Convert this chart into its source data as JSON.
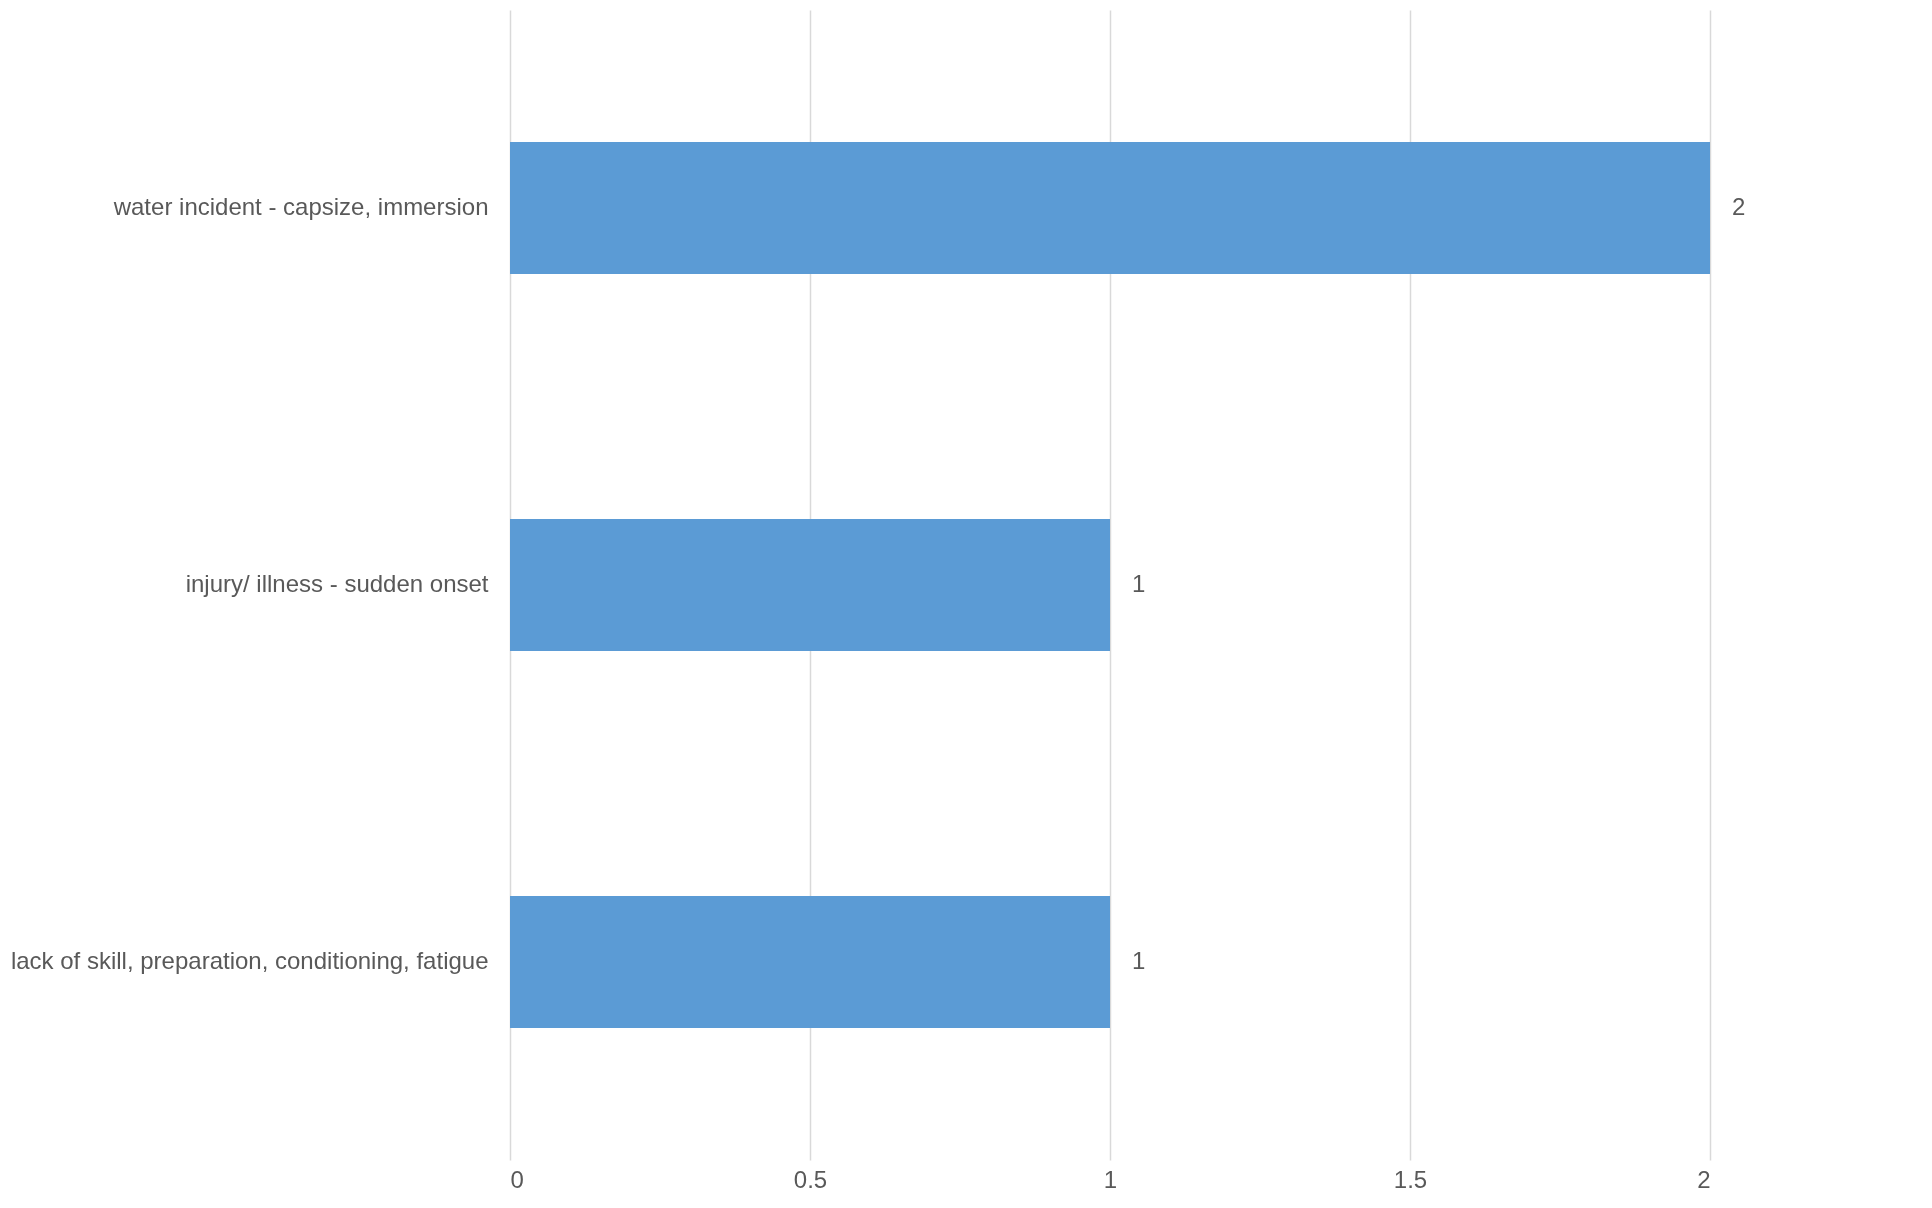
{
  "chart_data": {
    "type": "bar",
    "orientation": "horizontal",
    "categories": [
      "water incident - capsize, immersion",
      "injury/ illness - sudden onset",
      "lack of skill, preparation, conditioning, fatigue"
    ],
    "values": [
      2,
      1,
      1
    ],
    "color": "#5b9bd5",
    "xlim": [
      0,
      2
    ],
    "xticks": [
      0,
      0.5,
      1,
      1.5,
      2
    ],
    "grid": "x",
    "data_labels": true
  }
}
